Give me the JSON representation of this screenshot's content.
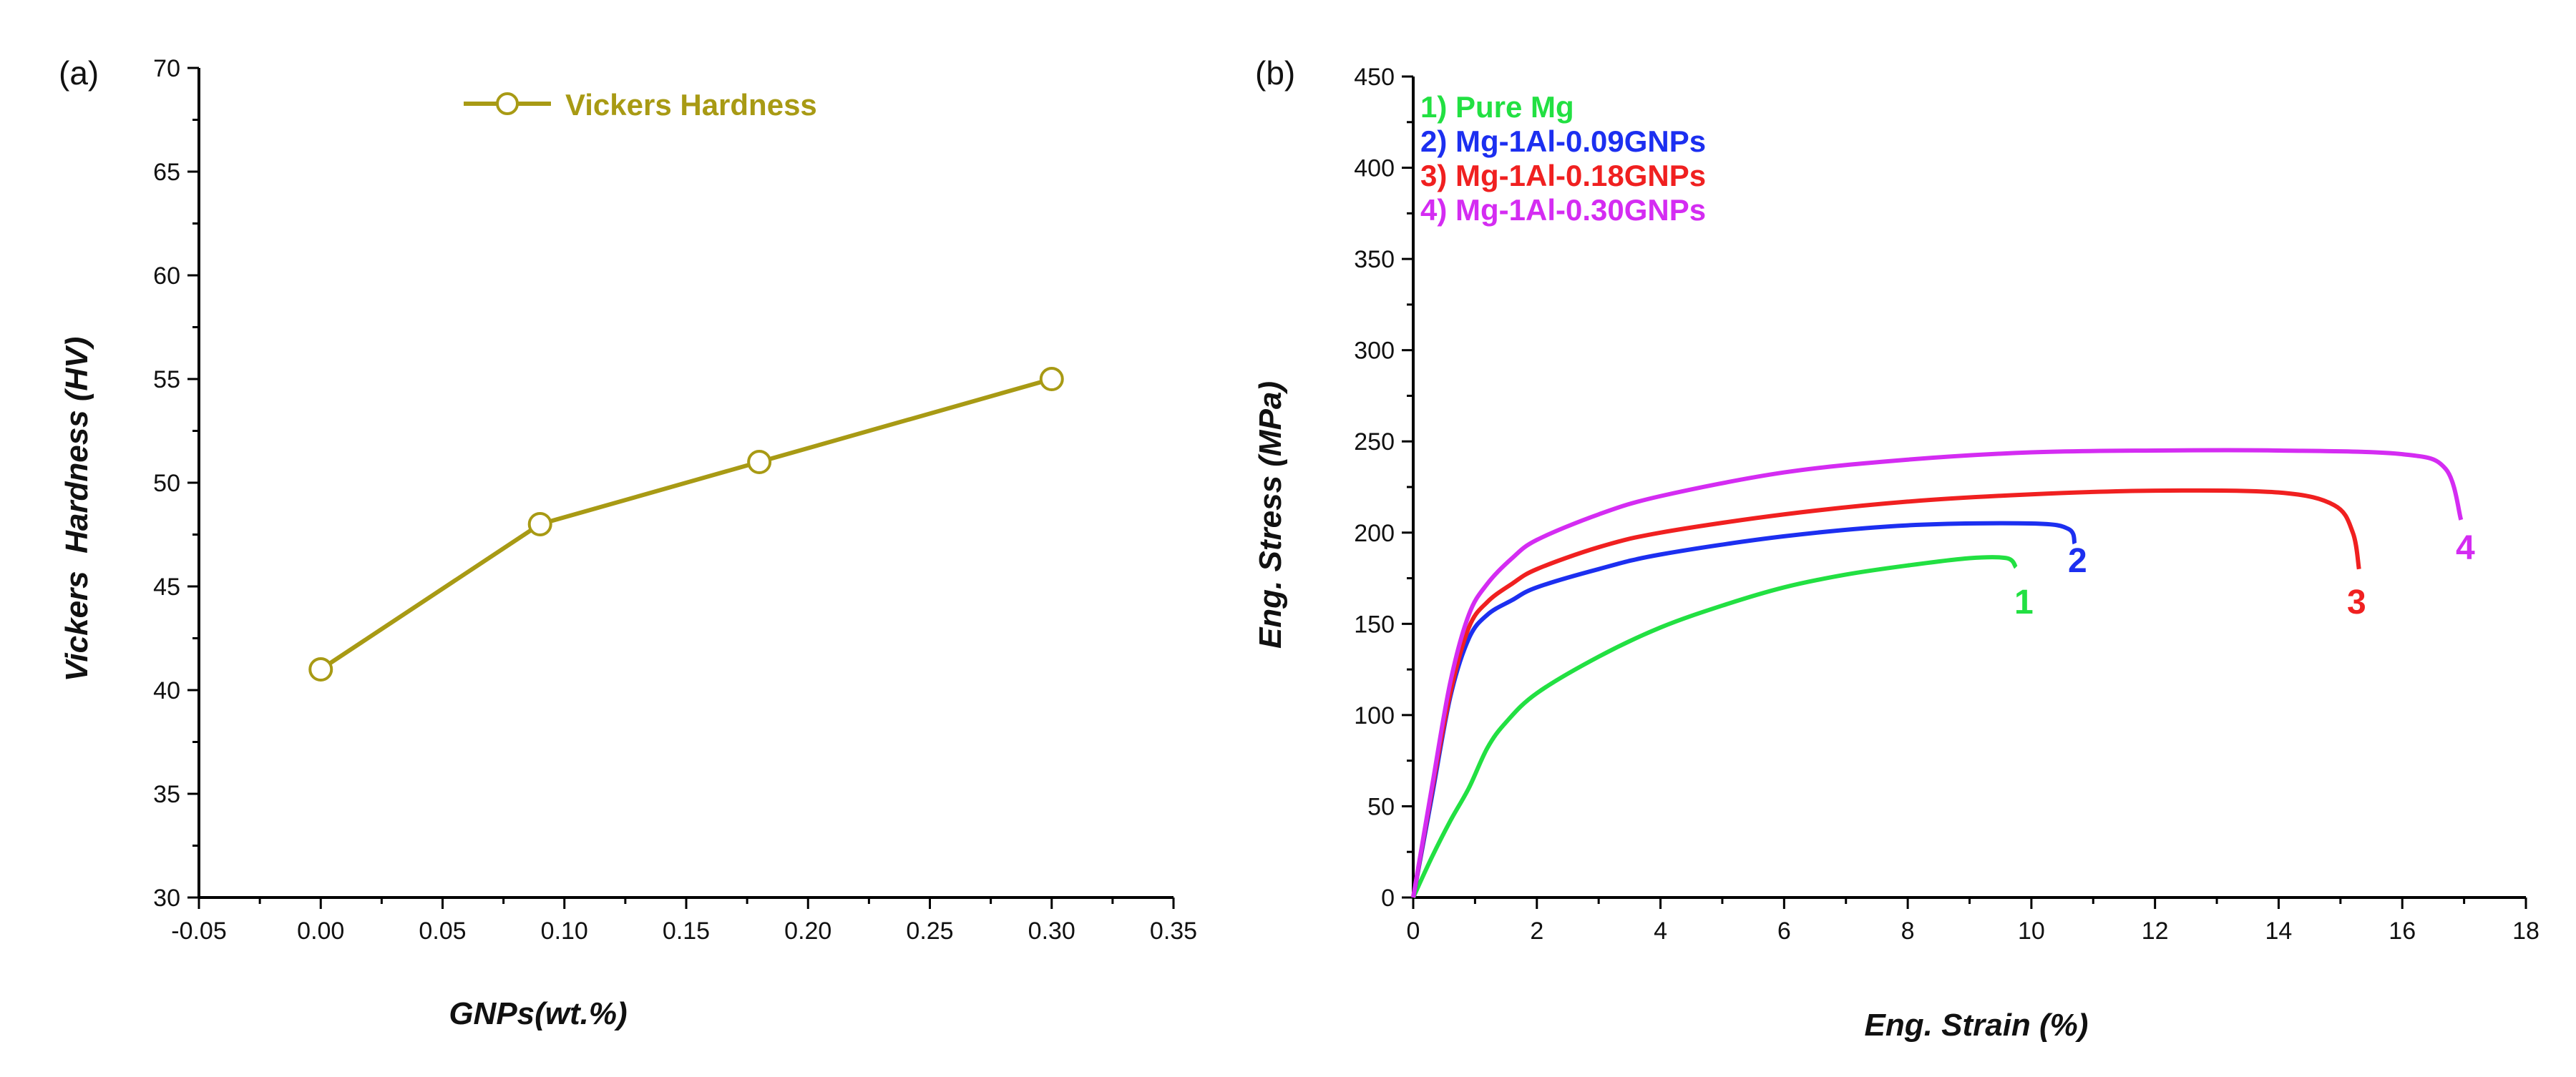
{
  "chart_data": [
    {
      "panel_label": "(a)",
      "type": "line",
      "xlabel": "GNPs(wt.%)",
      "ylabel": "Vickers  Hardness (HV)",
      "xlim": [
        -0.05,
        0.35
      ],
      "ylim": [
        30,
        70
      ],
      "xticks": [
        "-0.05",
        "0.00",
        "0.05",
        "0.10",
        "0.15",
        "0.20",
        "0.25",
        "0.30",
        "0.35"
      ],
      "yticks": [
        "30",
        "35",
        "40",
        "45",
        "50",
        "55",
        "60",
        "65",
        "70"
      ],
      "legend_position": "top-center",
      "series": [
        {
          "name": "Vickers  Hardness",
          "color": "#a89a14",
          "x": [
            0.0,
            0.09,
            0.18,
            0.3
          ],
          "y": [
            41,
            48,
            51,
            55
          ]
        }
      ]
    },
    {
      "panel_label": "(b)",
      "type": "line",
      "xlabel": "Eng. Strain (%)",
      "ylabel": "Eng. Stress (MPa)",
      "xlim": [
        0,
        18
      ],
      "ylim": [
        0,
        450
      ],
      "xticks": [
        "0",
        "2",
        "4",
        "6",
        "8",
        "10",
        "12",
        "14",
        "16",
        "18"
      ],
      "yticks": [
        "0",
        "50",
        "100",
        "150",
        "200",
        "250",
        "300",
        "350",
        "400",
        "450"
      ],
      "legend_position": "top-left",
      "series": [
        {
          "name": "1) Pure Mg",
          "end_label": "1",
          "color": "#22e042",
          "x": [
            0,
            0.3,
            0.6,
            0.9,
            1.2,
            1.5,
            2.0,
            3.0,
            4.0,
            5.0,
            6.0,
            7.0,
            8.0,
            9.0,
            9.6,
            9.75
          ],
          "y": [
            0,
            22,
            42,
            60,
            82,
            96,
            112,
            132,
            148,
            160,
            170,
            177,
            182,
            186,
            186,
            181
          ]
        },
        {
          "name": "2) Mg-1Al-0.09GNPs",
          "end_label": "2",
          "color": "#1c2ff0",
          "x": [
            0,
            0.3,
            0.6,
            0.9,
            1.2,
            1.6,
            2.0,
            3.0,
            4.0,
            6.0,
            8.0,
            10.0,
            10.6,
            10.7
          ],
          "y": [
            0,
            55,
            110,
            142,
            155,
            163,
            170,
            180,
            188,
            198,
            204,
            205,
            202,
            194
          ]
        },
        {
          "name": "3) Mg-1Al-0.18GNPs",
          "end_label": "3",
          "color": "#f02020",
          "x": [
            0,
            0.3,
            0.6,
            0.9,
            1.2,
            1.6,
            2.0,
            3.0,
            4.0,
            6.0,
            8.0,
            10.0,
            12.0,
            14.0,
            14.9,
            15.2,
            15.3
          ],
          "y": [
            0,
            58,
            112,
            148,
            162,
            172,
            180,
            192,
            200,
            210,
            217,
            221,
            223,
            222,
            215,
            200,
            180
          ]
        },
        {
          "name": "4) Mg-1Al-0.30GNPs",
          "end_label": "4",
          "color": "#d42cf2",
          "x": [
            0,
            0.3,
            0.6,
            0.9,
            1.2,
            1.6,
            2.0,
            3.0,
            4.0,
            6.0,
            8.0,
            10.0,
            12.0,
            14.0,
            16.0,
            16.7,
            16.95
          ],
          "y": [
            0,
            60,
            118,
            155,
            172,
            186,
            196,
            210,
            220,
            233,
            240,
            244,
            245,
            245,
            243,
            235,
            207
          ]
        }
      ]
    }
  ]
}
